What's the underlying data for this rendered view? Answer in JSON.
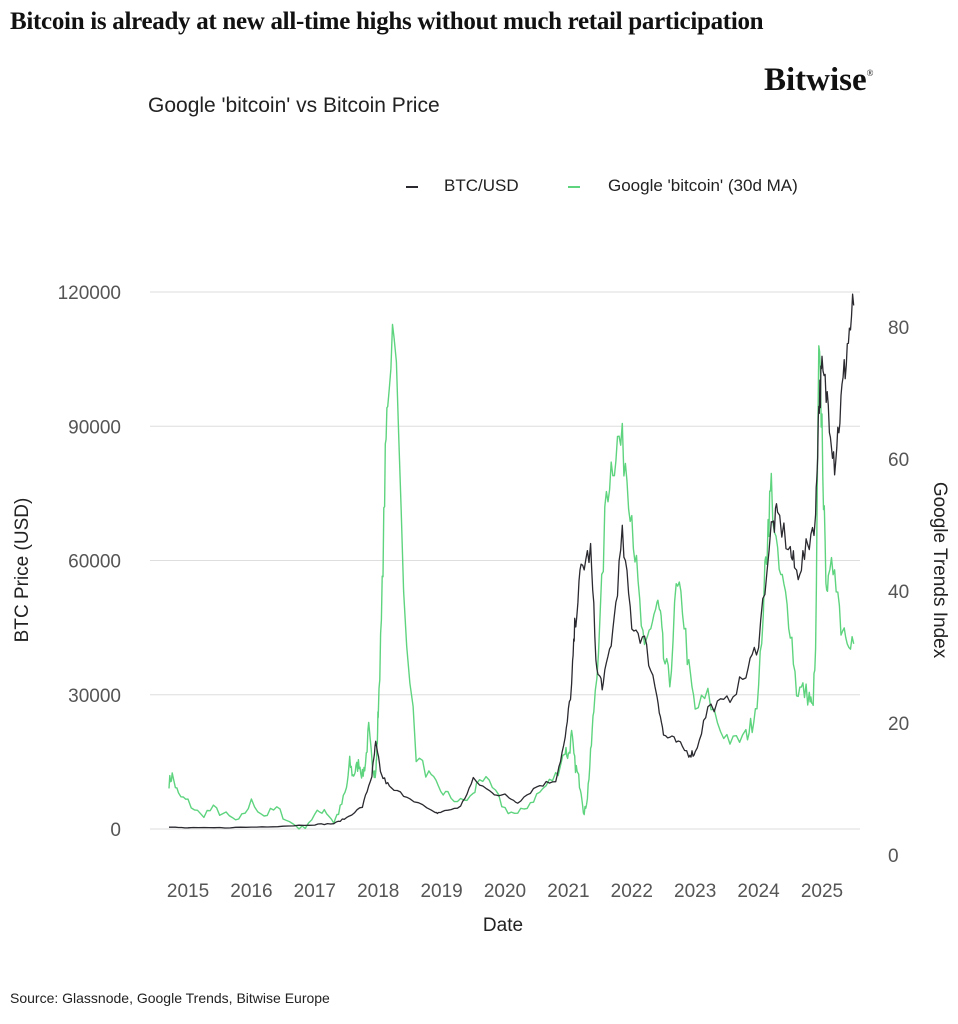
{
  "headline": "Bitcoin is already at new all-time highs without much retail participation",
  "brand": "Bitwise",
  "brand_mark": "®",
  "source": "Source: Glassnode, Google Trends, Bitwise Europe",
  "colors": {
    "btc": "#2a2a30",
    "google": "#5fd47f",
    "grid": "#dedede"
  },
  "chart_data": {
    "type": "line",
    "title": "Google 'bitcoin' vs Bitcoin Price",
    "xlabel": "Date",
    "ylabel": "BTC Price (USD)",
    "y2label": "Google Trends Index",
    "xlim": [
      2014.4,
      2025.6
    ],
    "ylim": [
      0,
      120000
    ],
    "y2lim": [
      0,
      80
    ],
    "xticks": [
      2015,
      2016,
      2017,
      2018,
      2019,
      2020,
      2021,
      2022,
      2023,
      2024,
      2025
    ],
    "xtick_labels": [
      "2015",
      "2016",
      "2017",
      "2018",
      "2019",
      "2020",
      "2021",
      "2022",
      "2023",
      "2024",
      "2025"
    ],
    "yticks": [
      0,
      30000,
      60000,
      90000,
      120000
    ],
    "y2ticks": [
      0,
      20,
      40,
      60,
      80
    ],
    "grid": true,
    "legend_position": "top-right",
    "series": [
      {
        "name": "BTC/USD",
        "axis": "left",
        "x": [
          2014.7,
          2015.0,
          2015.5,
          2016.0,
          2016.5,
          2017.0,
          2017.3,
          2017.5,
          2017.75,
          2017.9,
          2017.96,
          2018.05,
          2018.2,
          2018.5,
          2018.9,
          2019.0,
          2019.3,
          2019.5,
          2019.8,
          2020.0,
          2020.2,
          2020.5,
          2020.8,
          2020.95,
          2021.05,
          2021.1,
          2021.2,
          2021.35,
          2021.45,
          2021.55,
          2021.7,
          2021.85,
          2022.0,
          2022.2,
          2022.4,
          2022.5,
          2022.7,
          2022.9,
          2023.0,
          2023.2,
          2023.5,
          2023.8,
          2024.0,
          2024.2,
          2024.3,
          2024.5,
          2024.6,
          2024.75,
          2024.9,
          2024.95,
          2025.0,
          2025.1,
          2025.2,
          2025.3,
          2025.4,
          2025.5
        ],
        "y": [
          400,
          250,
          270,
          420,
          650,
          1000,
          1200,
          2500,
          5000,
          12000,
          19000,
          12000,
          9000,
          7000,
          3500,
          3800,
          5000,
          11000,
          8000,
          7500,
          6000,
          9500,
          11000,
          20000,
          32000,
          45000,
          58000,
          62000,
          35000,
          32000,
          44000,
          65000,
          46000,
          42000,
          30000,
          21000,
          19500,
          16800,
          17000,
          27000,
          28500,
          34500,
          42000,
          67000,
          70000,
          62000,
          57000,
          62000,
          70000,
          95000,
          102000,
          95000,
          82000,
          95000,
          108000,
          117000
        ]
      },
      {
        "name": "Google 'bitcoin' (30d MA)",
        "axis": "right",
        "x": [
          2014.7,
          2014.75,
          2014.85,
          2015.0,
          2015.2,
          2015.4,
          2015.6,
          2015.8,
          2016.0,
          2016.2,
          2016.4,
          2016.6,
          2016.8,
          2017.0,
          2017.15,
          2017.3,
          2017.4,
          2017.5,
          2017.55,
          2017.6,
          2017.65,
          2017.7,
          2017.75,
          2017.8,
          2017.85,
          2017.9,
          2017.93,
          2017.96,
          2017.98,
          2018.0,
          2018.05,
          2018.1,
          2018.15,
          2018.25,
          2018.4,
          2018.6,
          2018.8,
          2018.95,
          2019.1,
          2019.3,
          2019.5,
          2019.6,
          2019.8,
          2020.0,
          2020.2,
          2020.4,
          2020.6,
          2020.8,
          2020.95,
          2021.0,
          2021.05,
          2021.1,
          2021.15,
          2021.2,
          2021.25,
          2021.3,
          2021.35,
          2021.4,
          2021.5,
          2021.6,
          2021.7,
          2021.8,
          2021.9,
          2022.0,
          2022.1,
          2022.2,
          2022.3,
          2022.4,
          2022.45,
          2022.5,
          2022.6,
          2022.7,
          2022.8,
          2022.9,
          2023.0,
          2023.2,
          2023.4,
          2023.6,
          2023.8,
          2023.9,
          2024.0,
          2024.1,
          2024.15,
          2024.2,
          2024.3,
          2024.4,
          2024.5,
          2024.6,
          2024.7,
          2024.8,
          2024.85,
          2024.9,
          2024.95,
          2025.0,
          2025.05,
          2025.1,
          2025.2,
          2025.3,
          2025.4,
          2025.5
        ],
        "y": [
          11,
          12,
          9,
          8,
          6,
          7,
          6,
          5,
          8,
          6,
          7,
          5,
          4,
          6,
          7,
          5,
          7,
          10,
          14,
          12,
          13,
          14,
          12,
          14,
          19,
          14,
          13,
          12,
          16,
          22,
          35,
          55,
          70,
          83,
          40,
          15,
          12,
          10,
          9,
          8,
          9,
          12,
          10,
          7,
          6,
          8,
          10,
          12,
          16,
          15,
          18,
          14,
          12,
          10,
          6,
          9,
          15,
          22,
          35,
          55,
          60,
          63,
          60,
          52,
          40,
          30,
          35,
          38,
          36,
          30,
          26,
          40,
          38,
          28,
          22,
          24,
          19,
          17,
          18,
          20,
          25,
          42,
          50,
          56,
          44,
          40,
          35,
          25,
          25,
          24,
          22,
          30,
          75,
          65,
          45,
          40,
          45,
          35,
          34,
          32
        ]
      }
    ]
  }
}
